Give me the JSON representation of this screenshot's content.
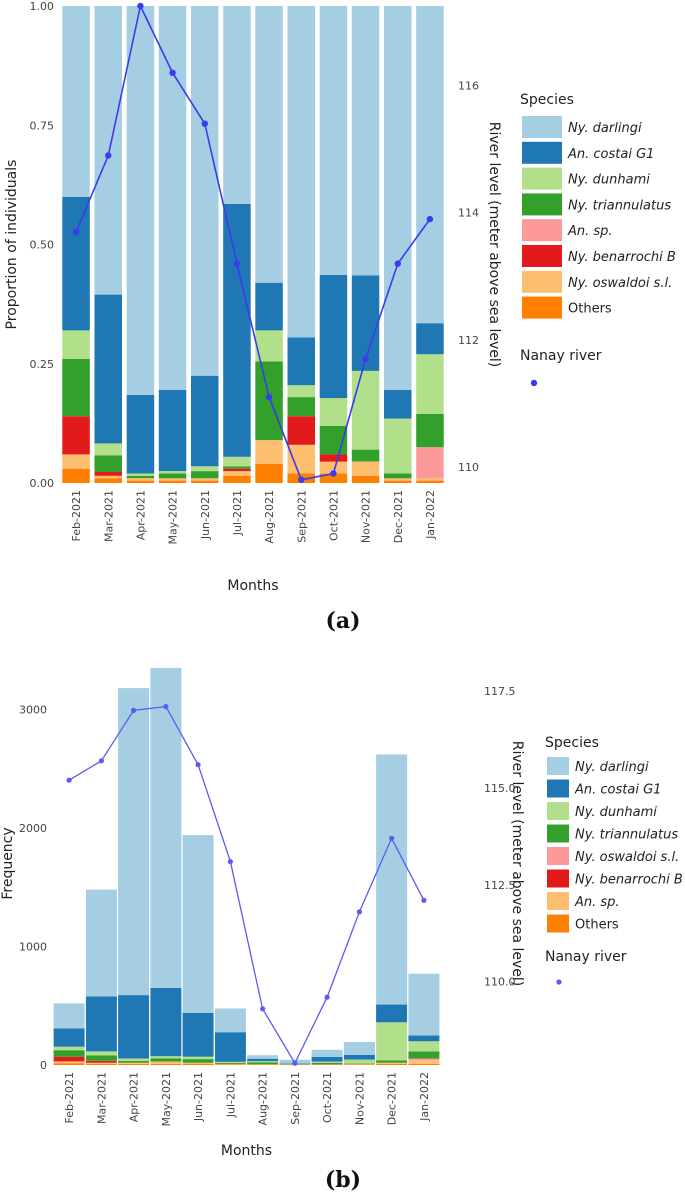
{
  "chart_data": [
    {
      "panel": "(a)",
      "type": "bar",
      "stacked": true,
      "xlabel": "Months",
      "ylabel": "Proportion of individuals",
      "y2label": "River level (meter above sea level)",
      "ylim": [
        0,
        1
      ],
      "y2lim": [
        109.75,
        117.25
      ],
      "yticks": [
        "0.00",
        "0.25",
        "0.50",
        "0.75",
        "1.00"
      ],
      "y2ticks": [
        "110",
        "112",
        "114",
        "116"
      ],
      "legend_title": "Species",
      "line_legend_title": "Nanay river",
      "categories": [
        "Feb-2021",
        "Mar-2021",
        "Apr-2021",
        "May-2021",
        "Jun-2021",
        "Jul-2021",
        "Aug-2021",
        "Sep-2021",
        "Oct-2021",
        "Nov-2021",
        "Dec-2021",
        "Jan-2022"
      ],
      "series": [
        {
          "name": "Others",
          "color": "#ff7f00",
          "values": [
            0.03,
            0.01,
            0.005,
            0.005,
            0.005,
            0.015,
            0.04,
            0.02,
            0.02,
            0.015,
            0.005,
            0.005
          ]
        },
        {
          "name": "Ny. oswaldoi s.l.",
          "color": "#fdbf6f",
          "values": [
            0.03,
            0.005,
            0.005,
            0.005,
            0.005,
            0.01,
            0.05,
            0.06,
            0.025,
            0.03,
            0.005,
            0.005
          ]
        },
        {
          "name": "Ny. benarrochi B",
          "color": "#e31a1c",
          "values": [
            0.08,
            0.008,
            0,
            0,
            0,
            0.005,
            0,
            0.06,
            0.015,
            0,
            0,
            0
          ]
        },
        {
          "name": "An. sp.",
          "color": "#fb9a99",
          "values": [
            0,
            0,
            0,
            0,
            0,
            0,
            0,
            0,
            0,
            0,
            0,
            0.065
          ]
        },
        {
          "name": "Ny. triannulatus",
          "color": "#33a02c",
          "values": [
            0.12,
            0.035,
            0.005,
            0.01,
            0.015,
            0.005,
            0.165,
            0.04,
            0.06,
            0.025,
            0.01,
            0.07
          ]
        },
        {
          "name": "Ny. dunhami",
          "color": "#b2df8a",
          "values": [
            0.06,
            0.025,
            0.005,
            0.005,
            0.01,
            0.02,
            0.065,
            0.025,
            0.058,
            0.165,
            0.115,
            0.125
          ]
        },
        {
          "name": "An. costai G1",
          "color": "#1f78b4",
          "values": [
            0.28,
            0.312,
            0.165,
            0.17,
            0.19,
            0.53,
            0.1,
            0.1,
            0.258,
            0.2,
            0.06,
            0.065
          ]
        },
        {
          "name": "Ny. darlingi",
          "color": "#a6cee3",
          "values": [
            0.4,
            0.605,
            0.815,
            0.805,
            0.775,
            0.415,
            0.58,
            0.695,
            0.564,
            0.565,
            0.805,
            0.665
          ]
        }
      ],
      "legend_order": [
        "Ny. darlingi",
        "An. costai G1",
        "Ny. dunhami",
        "Ny. triannulatus",
        "An. sp.",
        "Ny. benarrochi B",
        "Ny. oswaldoi s.l.",
        "Others"
      ],
      "line": {
        "name": "Nanay river",
        "color": "#3a3af0",
        "values": [
          113.7,
          114.9,
          117.25,
          116.2,
          115.4,
          113.2,
          111.1,
          109.8,
          109.9,
          111.7,
          113.2,
          113.9
        ]
      }
    },
    {
      "panel": "(b)",
      "type": "bar",
      "stacked": true,
      "xlabel": "Months",
      "ylabel": "Frequency",
      "y2label": "River level (meter above sea level)",
      "ylim": [
        0,
        3400
      ],
      "y2lim": [
        107.85,
        118.25
      ],
      "yticks": [
        "0",
        "1000",
        "2000",
        "3000"
      ],
      "y2ticks": [
        "110.0",
        "112.5",
        "115.0",
        "117.5"
      ],
      "legend_title": "Species",
      "line_legend_title": "Nanay river",
      "categories": [
        "Feb-2021",
        "Mar-2021",
        "Apr-2021",
        "May-2021",
        "Jun-2021",
        "Jul-2021",
        "Aug-2021",
        "Sep-2021",
        "Oct-2021",
        "Nov-2021",
        "Dec-2021",
        "Jan-2022"
      ],
      "series": [
        {
          "name": "Others",
          "color": "#ff7f00",
          "values": [
            15,
            10,
            10,
            10,
            10,
            5,
            5,
            2,
            3,
            5,
            10,
            10
          ]
        },
        {
          "name": "An. sp.",
          "color": "#fdbf6f",
          "values": [
            15,
            10,
            10,
            20,
            10,
            5,
            3,
            2,
            3,
            5,
            10,
            30
          ]
        },
        {
          "name": "Ny. benarrochi B",
          "color": "#e31a1c",
          "values": [
            40,
            15,
            0,
            0,
            0,
            2,
            0,
            1,
            2,
            0,
            0,
            0
          ]
        },
        {
          "name": "Ny. oswaldoi s.l.",
          "color": "#fb9a99",
          "values": [
            0,
            0,
            0,
            0,
            0,
            0,
            0,
            0,
            0,
            0,
            0,
            15
          ]
        },
        {
          "name": "Ny. triannulatus",
          "color": "#33a02c",
          "values": [
            55,
            45,
            15,
            25,
            30,
            5,
            15,
            2,
            10,
            5,
            20,
            60
          ]
        },
        {
          "name": "Ny. dunhami",
          "color": "#b2df8a",
          "values": [
            30,
            35,
            20,
            20,
            20,
            10,
            10,
            2,
            10,
            30,
            320,
            85
          ]
        },
        {
          "name": "An. costai G1",
          "color": "#1f78b4",
          "values": [
            155,
            465,
            535,
            575,
            370,
            250,
            20,
            5,
            40,
            40,
            150,
            50
          ]
        },
        {
          "name": "Ny. darlingi",
          "color": "#a6cee3",
          "values": [
            210,
            900,
            2590,
            2700,
            1500,
            200,
            30,
            30,
            60,
            110,
            2110,
            520
          ]
        }
      ],
      "legend_order": [
        "Ny. darlingi",
        "An. costai G1",
        "Ny. dunhami",
        "Ny. triannulatus",
        "Ny. oswaldoi s.l.",
        "Ny. benarrochi B",
        "An. sp.",
        "Others"
      ],
      "line": {
        "name": "Nanay river",
        "color": "#5b5bf2",
        "values": [
          115.2,
          115.7,
          117.0,
          117.1,
          115.6,
          113.1,
          109.3,
          107.9,
          109.6,
          111.8,
          113.7,
          112.1
        ]
      }
    }
  ]
}
